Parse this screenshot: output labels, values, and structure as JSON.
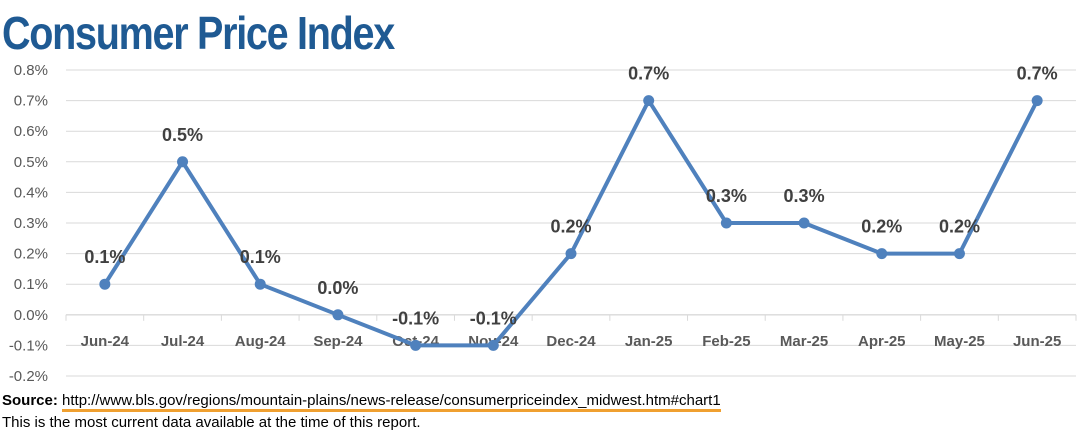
{
  "title": "Consumer Price Index",
  "source": {
    "label": "Source:",
    "url": "http://www.bls.gov/regions/mountain-plains/news-release/consumerpriceindex_midwest.htm#chart1"
  },
  "note": "This is the most current data available at the time of this report.",
  "colors": {
    "title": "#1f5a93",
    "line": "#4f81bd",
    "grid": "#d9d9d9",
    "underline": "#f0a030"
  },
  "chart_data": {
    "type": "line",
    "categories": [
      "Jun-24",
      "Jul-24",
      "Aug-24",
      "Sep-24",
      "Oct-24",
      "Nov-24",
      "Dec-24",
      "Jan-25",
      "Feb-25",
      "Mar-25",
      "Apr-25",
      "May-25",
      "Jun-25"
    ],
    "series": [
      {
        "values": [
          0.1,
          0.5,
          0.1,
          0.0,
          -0.1,
          -0.1,
          0.2,
          0.7,
          0.3,
          0.3,
          0.2,
          0.2,
          0.7
        ],
        "labels": [
          "0.1%",
          "0.5%",
          "0.1%",
          "0.0%",
          "-0.1%",
          "-0.1%",
          "0.2%",
          "0.7%",
          "0.3%",
          "0.3%",
          "0.2%",
          "0.2%",
          "0.7%"
        ]
      }
    ],
    "yticks": [
      "0.8%",
      "0.7%",
      "0.6%",
      "0.5%",
      "0.4%",
      "0.3%",
      "0.2%",
      "0.1%",
      "0.0%",
      "-0.1%",
      "-0.2%"
    ],
    "ytick_values": [
      0.8,
      0.7,
      0.6,
      0.5,
      0.4,
      0.3,
      0.2,
      0.1,
      0.0,
      -0.1,
      -0.2
    ],
    "ylim": [
      -0.2,
      0.8
    ],
    "grid": true,
    "legend": "none"
  }
}
